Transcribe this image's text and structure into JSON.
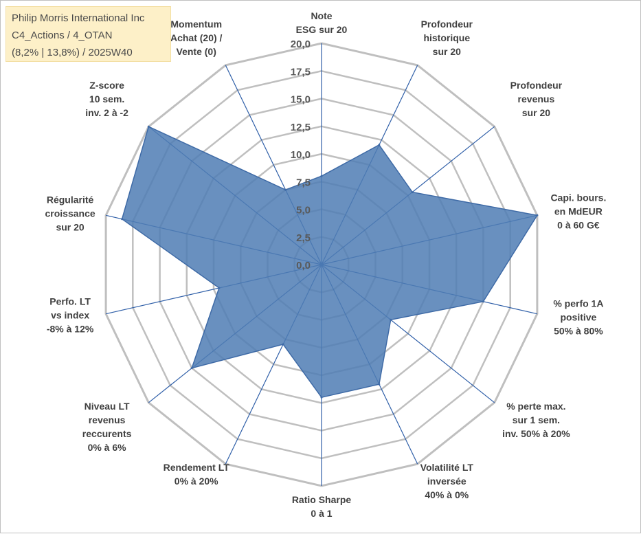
{
  "title_box": {
    "line1": "Philip Morris International Inc",
    "line2": "C4_Actions / 4_OTAN",
    "line3": "(8,2% | 13,8%) / 2025W40"
  },
  "colors": {
    "fill": "#4f7cb4",
    "stroke": "#3e6aa6",
    "grid": "#bfbfbf",
    "spoke": "#2f5fa8"
  },
  "chart_data": {
    "type": "radar",
    "rmin": 0,
    "rmax": 20,
    "tick_values": [
      0,
      2.5,
      5,
      7.5,
      10,
      12.5,
      15,
      17.5,
      20
    ],
    "tick_labels": [
      "0,0",
      "2,5",
      "5,0",
      "7,5",
      "10,0",
      "12,5",
      "15,0",
      "17,5",
      "20,0"
    ],
    "axes": [
      {
        "label": [
          "Note",
          "ESG sur 20"
        ],
        "value": 8
      },
      {
        "label": [
          "Profondeur",
          "historique",
          "sur 20"
        ],
        "value": 12
      },
      {
        "label": [
          "Profondeur",
          "revenus",
          "sur 20"
        ],
        "value": 10.5
      },
      {
        "label": [
          "Capi. bours.",
          "en MdEUR",
          "0 à 60 G€"
        ],
        "value": 20
      },
      {
        "label": [
          "% perfo 1A",
          "positive",
          "50% à 80%"
        ],
        "value": 15
      },
      {
        "label": [
          "% perte max.",
          "sur 1 sem.",
          "inv. 50% à 20%"
        ],
        "value": 8
      },
      {
        "label": [
          "Volatilité LT",
          "inversée",
          "40% à 0%"
        ],
        "value": 12
      },
      {
        "label": [
          "Ratio Sharpe",
          "0 à 1"
        ],
        "value": 12
      },
      {
        "label": [
          "Rendement LT",
          "0% à 20%"
        ],
        "value": 8
      },
      {
        "label": [
          "Niveau LT",
          "revenus",
          "reccurents",
          "0% à 6%"
        ],
        "value": 15
      },
      {
        "label": [
          "Perfo. LT",
          "vs index",
          "-8% à 12%"
        ],
        "value": 9.5
      },
      {
        "label": [
          "Régularité",
          "croissance",
          "sur 20"
        ],
        "value": 18.5
      },
      {
        "label": [
          "Z-score",
          "10 sem.",
          "inv. 2 à -2"
        ],
        "value": 20
      },
      {
        "label": [
          "Momentum",
          "Achat (20) /",
          "Vente (0)"
        ],
        "value": 7.5
      }
    ]
  }
}
